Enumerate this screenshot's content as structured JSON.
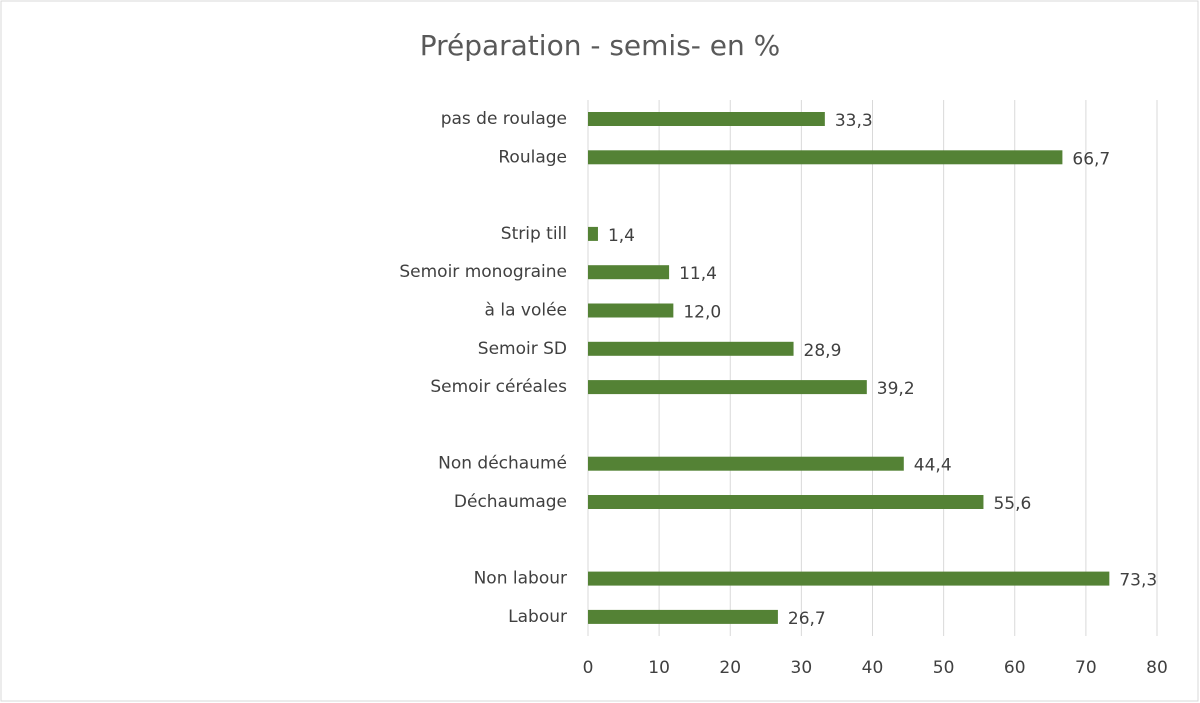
{
  "chart_data": {
    "type": "hbar",
    "title": "Préparation - semis-  en %",
    "categories": [
      "pas de roulage",
      "Roulage",
      null,
      "Strip till",
      "Semoir monograine",
      "à la volée",
      "Semoir SD",
      "Semoir céréales",
      null,
      "Non déchaumé",
      "Déchaumage",
      null,
      "Non labour",
      "Labour"
    ],
    "values": [
      33.3,
      66.7,
      null,
      1.4,
      11.4,
      12.0,
      28.9,
      39.2,
      null,
      44.4,
      55.6,
      null,
      73.3,
      26.7
    ],
    "value_labels": [
      "33,3",
      "66,7",
      null,
      "1,4",
      "11,4",
      "12,0",
      "28,9",
      "39,2",
      null,
      "44,4",
      "55,6",
      null,
      "73,3",
      "26,7"
    ],
    "color": "#548235",
    "xlim": [
      0,
      80
    ],
    "xticks": [
      0,
      10,
      20,
      30,
      40,
      50,
      60,
      70,
      80
    ],
    "grid": true
  }
}
